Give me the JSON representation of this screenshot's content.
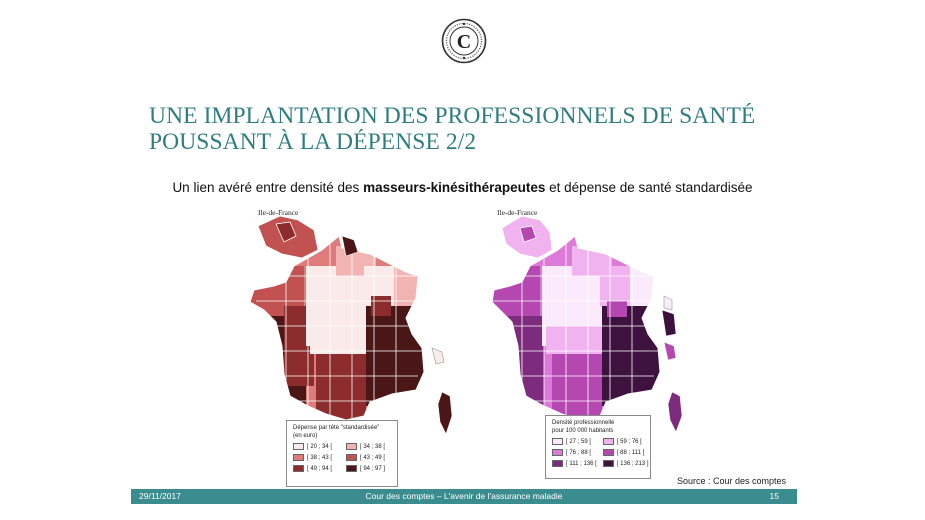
{
  "slide": {
    "title_line1": "UNE IMPLANTATION  DES PROFESSIONNELS DE SANTÉ",
    "title_line2": "POUSSANT À LA DÉPENSE 2/2",
    "subtitle_prefix": "Un lien avéré entre densité des ",
    "subtitle_bold": "masseurs-kinésithérapeutes",
    "subtitle_suffix": " et dépense de santé standardisée",
    "source": "Source : Cour des comptes"
  },
  "map_left": {
    "inset_label": "Ile-de-France",
    "legend_title_line1": "Dépense par tête \"standardisée\"",
    "legend_title_line2": "(en euro)",
    "legend": [
      {
        "label": "[ 20 ; 34 [",
        "color": "#fbeaea"
      },
      {
        "label": "[ 34 ; 38 [",
        "color": "#f2b3b3"
      },
      {
        "label": "[ 38 ; 43 [",
        "color": "#de7b7b"
      },
      {
        "label": "[ 43 ; 49 [",
        "color": "#c25151"
      },
      {
        "label": "[ 49 ; 94 [",
        "color": "#8d2c2c"
      },
      {
        "label": "[ 94 ; 97 ]",
        "color": "#4a1616"
      }
    ]
  },
  "map_right": {
    "inset_label": "Ile-de-France",
    "legend_title_line1": "Densité professionnelle",
    "legend_title_line2": "pour 100 000 habitants",
    "legend": [
      {
        "label": "[ 27 ; 59 [",
        "color": "#fbeafb"
      },
      {
        "label": "[ 59 ; 76 [",
        "color": "#f1b3ef"
      },
      {
        "label": "[ 76 ; 88 [",
        "color": "#dc7ad8"
      },
      {
        "label": "[ 88 ; 111 [",
        "color": "#b448b0"
      },
      {
        "label": "[ 111 ; 136 [",
        "color": "#7d2b7c"
      },
      {
        "label": "[ 136 ; 213 ]",
        "color": "#3e123f"
      }
    ]
  },
  "footer": {
    "date": "29/11/2017",
    "center": "Cour des comptes – L'avenir de l'assurance maladie",
    "page": "15"
  },
  "colors": {
    "title": "#2f7d7f",
    "footer_bar": "#3b8c8e",
    "outline": "#ffffff"
  }
}
